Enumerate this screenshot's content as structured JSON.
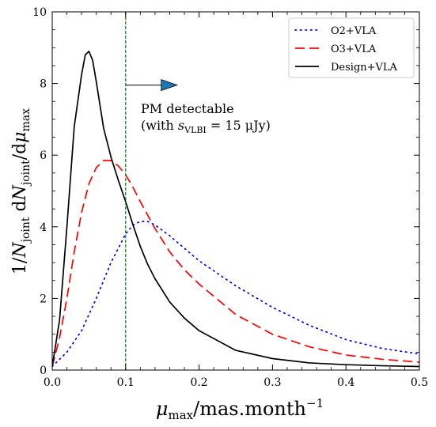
{
  "chart_data": {
    "type": "line",
    "xlabel": {
      "main": "μ",
      "sub": "max",
      "rest": "/mas.month",
      "sup": "−1"
    },
    "ylabel": {
      "p1": "1/",
      "N1": "N",
      "sub1": "joint",
      "p2": " d",
      "N2": "N",
      "sub2": "joint",
      "p3": "/d",
      "mu": "μ",
      "sub3": "max"
    },
    "xlim": [
      0.0,
      0.5
    ],
    "ylim": [
      0,
      10
    ],
    "xticks": [
      "0.0",
      "0.1",
      "0.2",
      "0.3",
      "0.4",
      "0.5"
    ],
    "yticks": [
      "0",
      "2",
      "4",
      "6",
      "8",
      "10"
    ],
    "threshold_x": 0.1,
    "threshold_color": "#008000",
    "arrow": {
      "x_start": 0.1,
      "x_end": 0.17,
      "y": 8.0,
      "color": "#1f77b4"
    },
    "annotation": {
      "line1": "PM detectable",
      "line2_pre": "(with ",
      "line2_s": "s",
      "line2_sub": "VLBI",
      "line2_post": " = 15 μJy)"
    },
    "legend_position": "top-right",
    "series": [
      {
        "name": "O2+VLA",
        "color": "#0000ff",
        "dash": "dotted",
        "x": [
          0.0,
          0.02,
          0.04,
          0.06,
          0.08,
          0.1,
          0.11,
          0.12,
          0.13,
          0.14,
          0.16,
          0.18,
          0.2,
          0.25,
          0.3,
          0.35,
          0.4,
          0.45,
          0.5
        ],
        "y": [
          0.1,
          0.5,
          1.1,
          2.0,
          3.0,
          3.8,
          4.05,
          4.15,
          4.15,
          4.05,
          3.75,
          3.4,
          3.05,
          2.35,
          1.75,
          1.25,
          0.85,
          0.6,
          0.45
        ]
      },
      {
        "name": "O3+VLA",
        "color": "#ff0000",
        "dash": "dashed",
        "x": [
          0.0,
          0.01,
          0.02,
          0.03,
          0.04,
          0.05,
          0.06,
          0.07,
          0.08,
          0.09,
          0.1,
          0.11,
          0.12,
          0.14,
          0.16,
          0.18,
          0.2,
          0.25,
          0.3,
          0.35,
          0.4,
          0.45,
          0.5
        ],
        "y": [
          0.1,
          0.9,
          2.0,
          3.3,
          4.4,
          5.2,
          5.65,
          5.85,
          5.85,
          5.7,
          5.45,
          5.1,
          4.7,
          3.95,
          3.3,
          2.8,
          2.4,
          1.55,
          1.0,
          0.65,
          0.42,
          0.3,
          0.22
        ]
      },
      {
        "name": "Design+VLA",
        "color": "#000000",
        "dash": "solid",
        "x": [
          0.0,
          0.01,
          0.02,
          0.03,
          0.04,
          0.045,
          0.05,
          0.055,
          0.06,
          0.07,
          0.08,
          0.09,
          0.1,
          0.11,
          0.12,
          0.13,
          0.14,
          0.16,
          0.18,
          0.2,
          0.25,
          0.3,
          0.35,
          0.4,
          0.45,
          0.5
        ],
        "y": [
          0.1,
          1.4,
          4.0,
          6.8,
          8.25,
          8.8,
          8.9,
          8.65,
          8.05,
          6.75,
          5.95,
          5.3,
          4.7,
          4.05,
          3.45,
          2.95,
          2.55,
          1.9,
          1.45,
          1.1,
          0.55,
          0.32,
          0.2,
          0.15,
          0.12,
          0.1
        ]
      }
    ]
  }
}
